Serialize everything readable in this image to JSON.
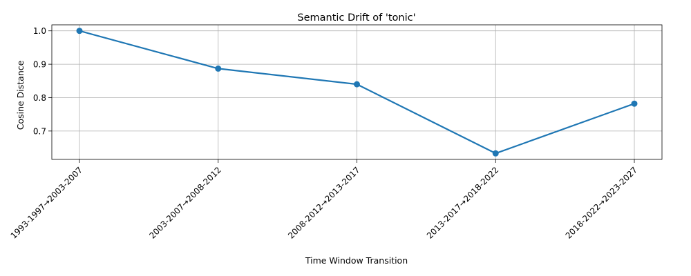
{
  "chart_data": {
    "type": "line",
    "title": "Semantic Drift of 'tonic'",
    "xlabel": "Time Window Transition",
    "ylabel": "Cosine Distance",
    "categories": [
      "1993-1997→2003-2007",
      "2003-2007→2008-2012",
      "2008-2012→2013-2017",
      "2013-2017→2018-2022",
      "2018-2022→2023-2027"
    ],
    "series": [
      {
        "values": [
          1.0,
          0.887,
          0.84,
          0.633,
          0.782
        ]
      }
    ],
    "yticks": [
      0.7,
      0.8,
      0.9,
      1.0
    ],
    "ytick_labels": [
      "0.7",
      "0.8",
      "0.9",
      "1.0"
    ],
    "ylim": [
      0.615,
      1.018
    ],
    "grid": true,
    "line_color": "#1f77b4",
    "marker": "circle"
  }
}
